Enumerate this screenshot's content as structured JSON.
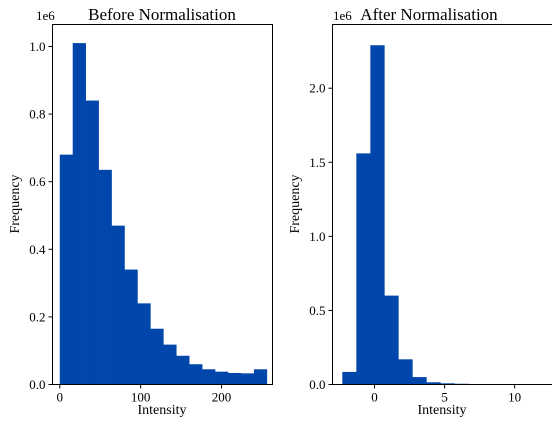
{
  "chart_data": [
    {
      "type": "bar",
      "title": "Before Normalisation",
      "xlabel": "Intensity",
      "ylabel": "Frequency",
      "y_multiplier": "1e6",
      "bar_color": "#0046AB",
      "xlim": [
        -9,
        263
      ],
      "ylim": [
        0,
        1.065
      ],
      "xticks": [
        0,
        100,
        200
      ],
      "xtick_labels": [
        "0",
        "100",
        "200"
      ],
      "yticks": [
        0.0,
        0.2,
        0.4,
        0.6,
        0.8,
        1.0
      ],
      "ytick_labels": [
        "0.0",
        "0.2",
        "0.4",
        "0.6",
        "0.8",
        "1.0"
      ],
      "bin_edges": [
        0,
        16,
        32,
        48,
        64,
        80,
        96,
        112,
        128,
        144,
        160,
        176,
        192,
        208,
        224,
        240,
        256
      ],
      "values": [
        0.68,
        1.01,
        0.84,
        0.635,
        0.47,
        0.34,
        0.24,
        0.165,
        0.118,
        0.085,
        0.06,
        0.045,
        0.038,
        0.034,
        0.033,
        0.045
      ]
    },
    {
      "type": "bar",
      "title": "After Normalisation",
      "xlabel": "Intensity",
      "ylabel": "Frequency",
      "y_multiplier": "1e6",
      "bar_color": "#0046AB",
      "xlim": [
        -3.0,
        12.7
      ],
      "ylim": [
        0,
        2.43
      ],
      "xticks": [
        0,
        5,
        10
      ],
      "xtick_labels": [
        "0",
        "5",
        "10"
      ],
      "yticks": [
        0.0,
        0.5,
        1.0,
        1.5,
        2.0
      ],
      "ytick_labels": [
        "0.0",
        "0.5",
        "1.0",
        "1.5",
        "2.0"
      ],
      "bin_edges": [
        -2.3,
        -1.3,
        -0.3,
        0.7,
        1.7,
        2.7,
        3.7,
        4.7,
        5.7,
        6.7,
        7.7,
        8.7,
        9.7,
        10.7,
        11.7,
        12.7
      ],
      "values": [
        0.085,
        1.56,
        2.29,
        0.6,
        0.17,
        0.05,
        0.015,
        0.008,
        0.005,
        0.003,
        0.002,
        0.001,
        0.001,
        0.001,
        0.001
      ]
    }
  ]
}
